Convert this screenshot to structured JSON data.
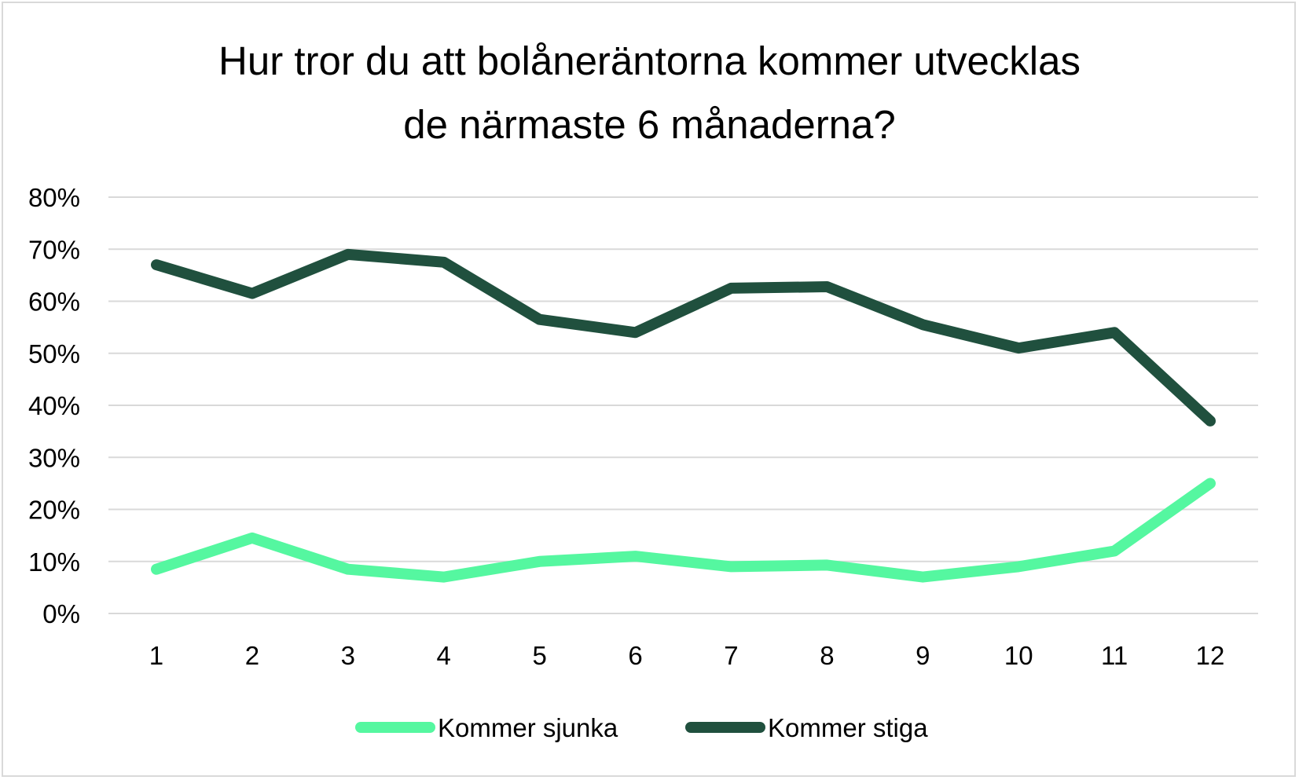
{
  "chart_data": {
    "type": "line",
    "title_lines": [
      "Hur tror du att bolåneräntorna kommer utvecklas",
      "de närmaste 6 månaderna?"
    ],
    "categories": [
      "1",
      "2",
      "3",
      "4",
      "5",
      "6",
      "7",
      "8",
      "9",
      "10",
      "11",
      "12"
    ],
    "y_ticks": [
      "0%",
      "10%",
      "20%",
      "30%",
      "40%",
      "50%",
      "60%",
      "70%",
      "80%"
    ],
    "ylim": [
      0,
      0.8
    ],
    "grid": true,
    "legend_position": "bottom",
    "series": [
      {
        "name": "Kommer sjunka",
        "color": "#55f7a0",
        "values": [
          0.085,
          0.145,
          0.085,
          0.07,
          0.1,
          0.11,
          0.09,
          0.093,
          0.07,
          0.09,
          0.12,
          0.25
        ]
      },
      {
        "name": "Kommer stiga",
        "color": "#20503e",
        "values": [
          0.67,
          0.615,
          0.69,
          0.675,
          0.565,
          0.54,
          0.625,
          0.628,
          0.555,
          0.51,
          0.54,
          0.37
        ]
      }
    ]
  }
}
